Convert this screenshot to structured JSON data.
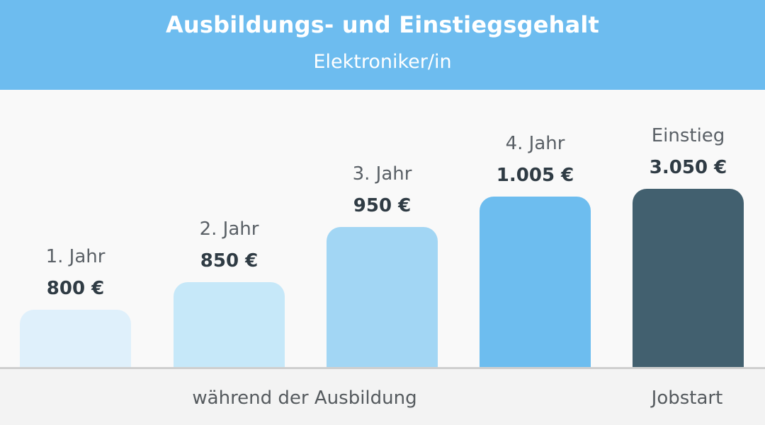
{
  "header": {
    "title": "Ausbildungs- und Einstiegsgehalt",
    "subtitle": "Elektroniker/in"
  },
  "footer": {
    "group_training": "während der Ausbildung",
    "group_start": "Jobstart"
  },
  "colors": {
    "header_bg": "#6dbcef",
    "bar_year1": "#dff0fb",
    "bar_year2": "#c6e8f9",
    "bar_year3": "#a2d6f4",
    "bar_year4": "#6dbdef",
    "bar_entry": "#42606f"
  },
  "chart_data": {
    "type": "bar",
    "title": "Ausbildungs- und Einstiegsgehalt",
    "subtitle": "Elektroniker/in",
    "categories": [
      "1. Jahr",
      "2. Jahr",
      "3. Jahr",
      "4. Jahr",
      "Einstieg"
    ],
    "values": [
      800,
      850,
      950,
      1005,
      3050
    ],
    "value_labels": [
      "800 €",
      "850 €",
      "950 €",
      "1.005 €",
      "3.050 €"
    ],
    "groups": [
      {
        "label": "während der Ausbildung",
        "categories": [
          "1. Jahr",
          "2. Jahr",
          "3. Jahr",
          "4. Jahr"
        ]
      },
      {
        "label": "Jobstart",
        "categories": [
          "Einstieg"
        ]
      }
    ],
    "xlabel": "",
    "ylabel": "",
    "grid": false,
    "legend": "none"
  }
}
